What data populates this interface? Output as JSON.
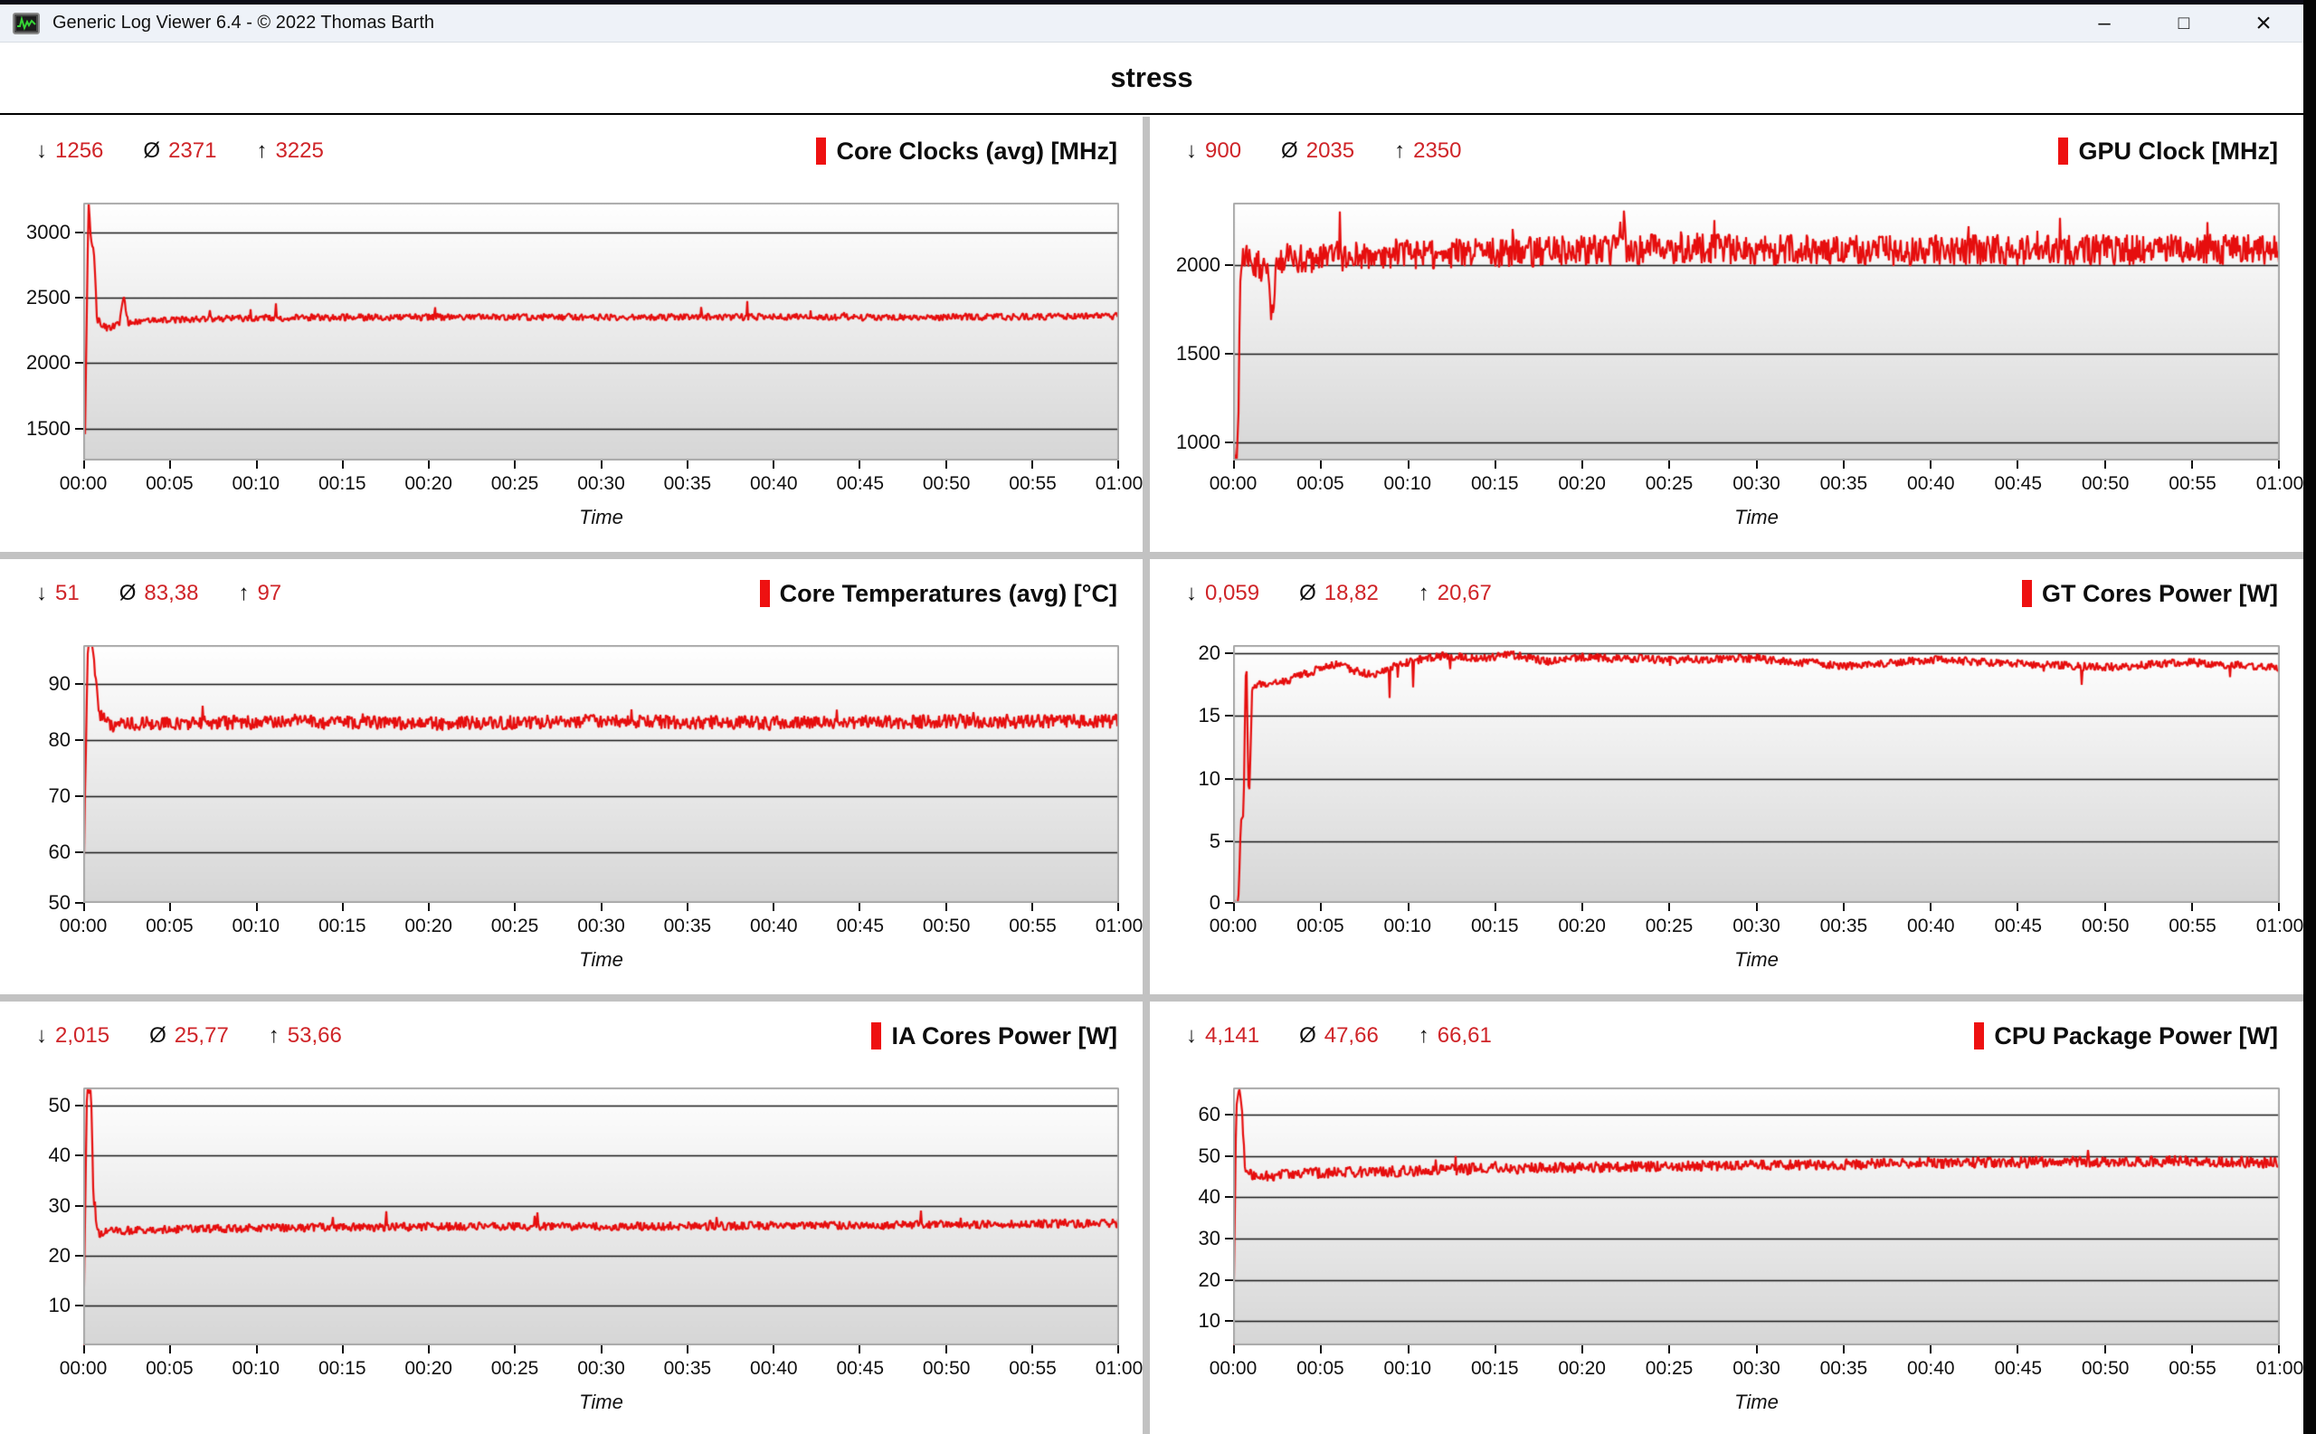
{
  "window": {
    "title": "Generic Log Viewer 6.4 - © 2022 Thomas Barth",
    "controls": {
      "minimize": "–",
      "maximize": "□",
      "close": "×"
    }
  },
  "header": {
    "page_title": "stress"
  },
  "symbols": {
    "min": "↓",
    "avg": "Ø",
    "max": "↑"
  },
  "x_axis": {
    "label": "Time",
    "duration_minutes": 60,
    "ticks": [
      "00:00",
      "00:05",
      "00:10",
      "00:15",
      "00:20",
      "00:25",
      "00:30",
      "00:35",
      "00:40",
      "00:45",
      "00:50",
      "00:55",
      "01:00"
    ]
  },
  "colors": {
    "series": "#e60e0e",
    "stat_value": "#cf2428",
    "legend_bar": "#ee1111",
    "gridline": "#151515",
    "plot_border": "#a9a9a9",
    "plot_bg_top": "#ffffff",
    "plot_bg_bottom": "#d6d6d6"
  },
  "chart_data": [
    {
      "type": "line",
      "title": "Core Clocks (avg) [MHz]",
      "stats": {
        "min": "1256",
        "avg": "2371",
        "max": "3225"
      },
      "ylim": [
        1256,
        3225
      ],
      "y_ticks": [
        1500,
        2000,
        2500,
        3000
      ],
      "noise": 27,
      "spike_prob": 0.012,
      "spike_amp": 130,
      "points": [
        [
          0,
          1900
        ],
        [
          0.08,
          1256
        ],
        [
          0.3,
          3225
        ],
        [
          0.5,
          2870
        ],
        [
          0.62,
          2850
        ],
        [
          0.8,
          2330
        ],
        [
          1.4,
          2265
        ],
        [
          2.1,
          2300
        ],
        [
          2.35,
          2520
        ],
        [
          2.6,
          2310
        ],
        [
          4,
          2325
        ],
        [
          8,
          2340
        ],
        [
          15,
          2350
        ],
        [
          25,
          2350
        ],
        [
          40,
          2352
        ],
        [
          50,
          2350
        ],
        [
          60,
          2358
        ]
      ]
    },
    {
      "type": "line",
      "title": "GPU Clock [MHz]",
      "stats": {
        "min": "900",
        "avg": "2035",
        "max": "2350"
      },
      "ylim": [
        900,
        2350
      ],
      "y_ticks": [
        1000,
        1500,
        2000
      ],
      "noise": 88,
      "spike_prob": 0.02,
      "spike_amp": 170,
      "points": [
        [
          0,
          1000
        ],
        [
          0.1,
          900
        ],
        [
          0.25,
          900
        ],
        [
          0.45,
          2050
        ],
        [
          1.2,
          2000
        ],
        [
          2.0,
          1980
        ],
        [
          2.2,
          1660
        ],
        [
          2.5,
          2040
        ],
        [
          4,
          2040
        ],
        [
          8,
          2060
        ],
        [
          15,
          2070
        ],
        [
          25,
          2090
        ],
        [
          35,
          2080
        ],
        [
          45,
          2085
        ],
        [
          55,
          2085
        ],
        [
          60,
          2090
        ]
      ]
    },
    {
      "type": "line",
      "title": "Core Temperatures (avg) [°C]",
      "stats": {
        "min": "51",
        "avg": "83,38",
        "max": "97"
      },
      "ylim": [
        51,
        97
      ],
      "y_ticks": [
        50,
        60,
        70,
        80,
        90
      ],
      "noise": 1.3,
      "spike_prob": 0.01,
      "spike_amp": 3,
      "points": [
        [
          0,
          51
        ],
        [
          0.25,
          96
        ],
        [
          0.5,
          97
        ],
        [
          0.9,
          85
        ],
        [
          1.6,
          82.5
        ],
        [
          3,
          83
        ],
        [
          10,
          83.3
        ],
        [
          20,
          83
        ],
        [
          30,
          83.4
        ],
        [
          40,
          83.1
        ],
        [
          50,
          83.4
        ],
        [
          60,
          83.4
        ]
      ]
    },
    {
      "type": "line",
      "title": "GT Cores Power [W]",
      "stats": {
        "min": "0,059",
        "avg": "18,82",
        "max": "20,67"
      },
      "ylim": [
        0.059,
        20.67
      ],
      "y_ticks": [
        0,
        5,
        10,
        15,
        20
      ],
      "noise": 0.35,
      "spike_prob": 0.008,
      "spike_amp": -2.6,
      "points": [
        [
          0,
          0.059
        ],
        [
          0.3,
          0.1
        ],
        [
          0.45,
          6.5
        ],
        [
          0.6,
          7.3
        ],
        [
          0.75,
          20.67
        ],
        [
          0.9,
          7.5
        ],
        [
          1.1,
          17.4
        ],
        [
          2,
          17.6
        ],
        [
          3,
          17.8
        ],
        [
          4,
          18.3
        ],
        [
          5,
          18.8
        ],
        [
          6,
          19.2
        ],
        [
          7,
          18.6
        ],
        [
          8,
          18.3
        ],
        [
          9,
          18.9
        ],
        [
          10,
          19.3
        ],
        [
          12,
          19.8
        ],
        [
          14,
          19.6
        ],
        [
          16,
          19.9
        ],
        [
          18,
          19.4
        ],
        [
          20,
          19.7
        ],
        [
          25,
          19.5
        ],
        [
          30,
          19.6
        ],
        [
          35,
          19.0
        ],
        [
          40,
          19.5
        ],
        [
          45,
          19.2
        ],
        [
          50,
          18.9
        ],
        [
          55,
          19.3
        ],
        [
          60,
          18.8
        ]
      ]
    },
    {
      "type": "line",
      "title": "IA Cores Power [W]",
      "stats": {
        "min": "2,015",
        "avg": "25,77",
        "max": "53,66"
      },
      "ylim": [
        2.015,
        53.66
      ],
      "y_ticks": [
        10,
        20,
        30,
        40,
        50
      ],
      "noise": 0.9,
      "spike_prob": 0.01,
      "spike_amp": 2.6,
      "points": [
        [
          0,
          2.015
        ],
        [
          0.22,
          53.66
        ],
        [
          0.45,
          53
        ],
        [
          0.6,
          30
        ],
        [
          0.85,
          24.5
        ],
        [
          1.6,
          24.8
        ],
        [
          3,
          25
        ],
        [
          6,
          25.3
        ],
        [
          10,
          25.5
        ],
        [
          20,
          25.8
        ],
        [
          30,
          25.8
        ],
        [
          40,
          26
        ],
        [
          50,
          26.2
        ],
        [
          60,
          26.5
        ]
      ]
    },
    {
      "type": "line",
      "title": "CPU Package Power [W]",
      "stats": {
        "min": "4,141",
        "avg": "47,66",
        "max": "66,61"
      },
      "ylim": [
        4.141,
        66.61
      ],
      "y_ticks": [
        10,
        20,
        30,
        40,
        50,
        60
      ],
      "noise": 1.4,
      "spike_prob": 0.008,
      "spike_amp": 3,
      "points": [
        [
          0,
          4.141
        ],
        [
          0.18,
          63
        ],
        [
          0.32,
          66.61
        ],
        [
          0.5,
          63
        ],
        [
          0.68,
          46
        ],
        [
          1.2,
          45.3
        ],
        [
          2,
          45.2
        ],
        [
          4,
          45.8
        ],
        [
          8,
          46.2
        ],
        [
          15,
          47
        ],
        [
          25,
          47.5
        ],
        [
          35,
          48
        ],
        [
          45,
          48.5
        ],
        [
          55,
          48.8
        ],
        [
          60,
          48.3
        ]
      ]
    }
  ]
}
